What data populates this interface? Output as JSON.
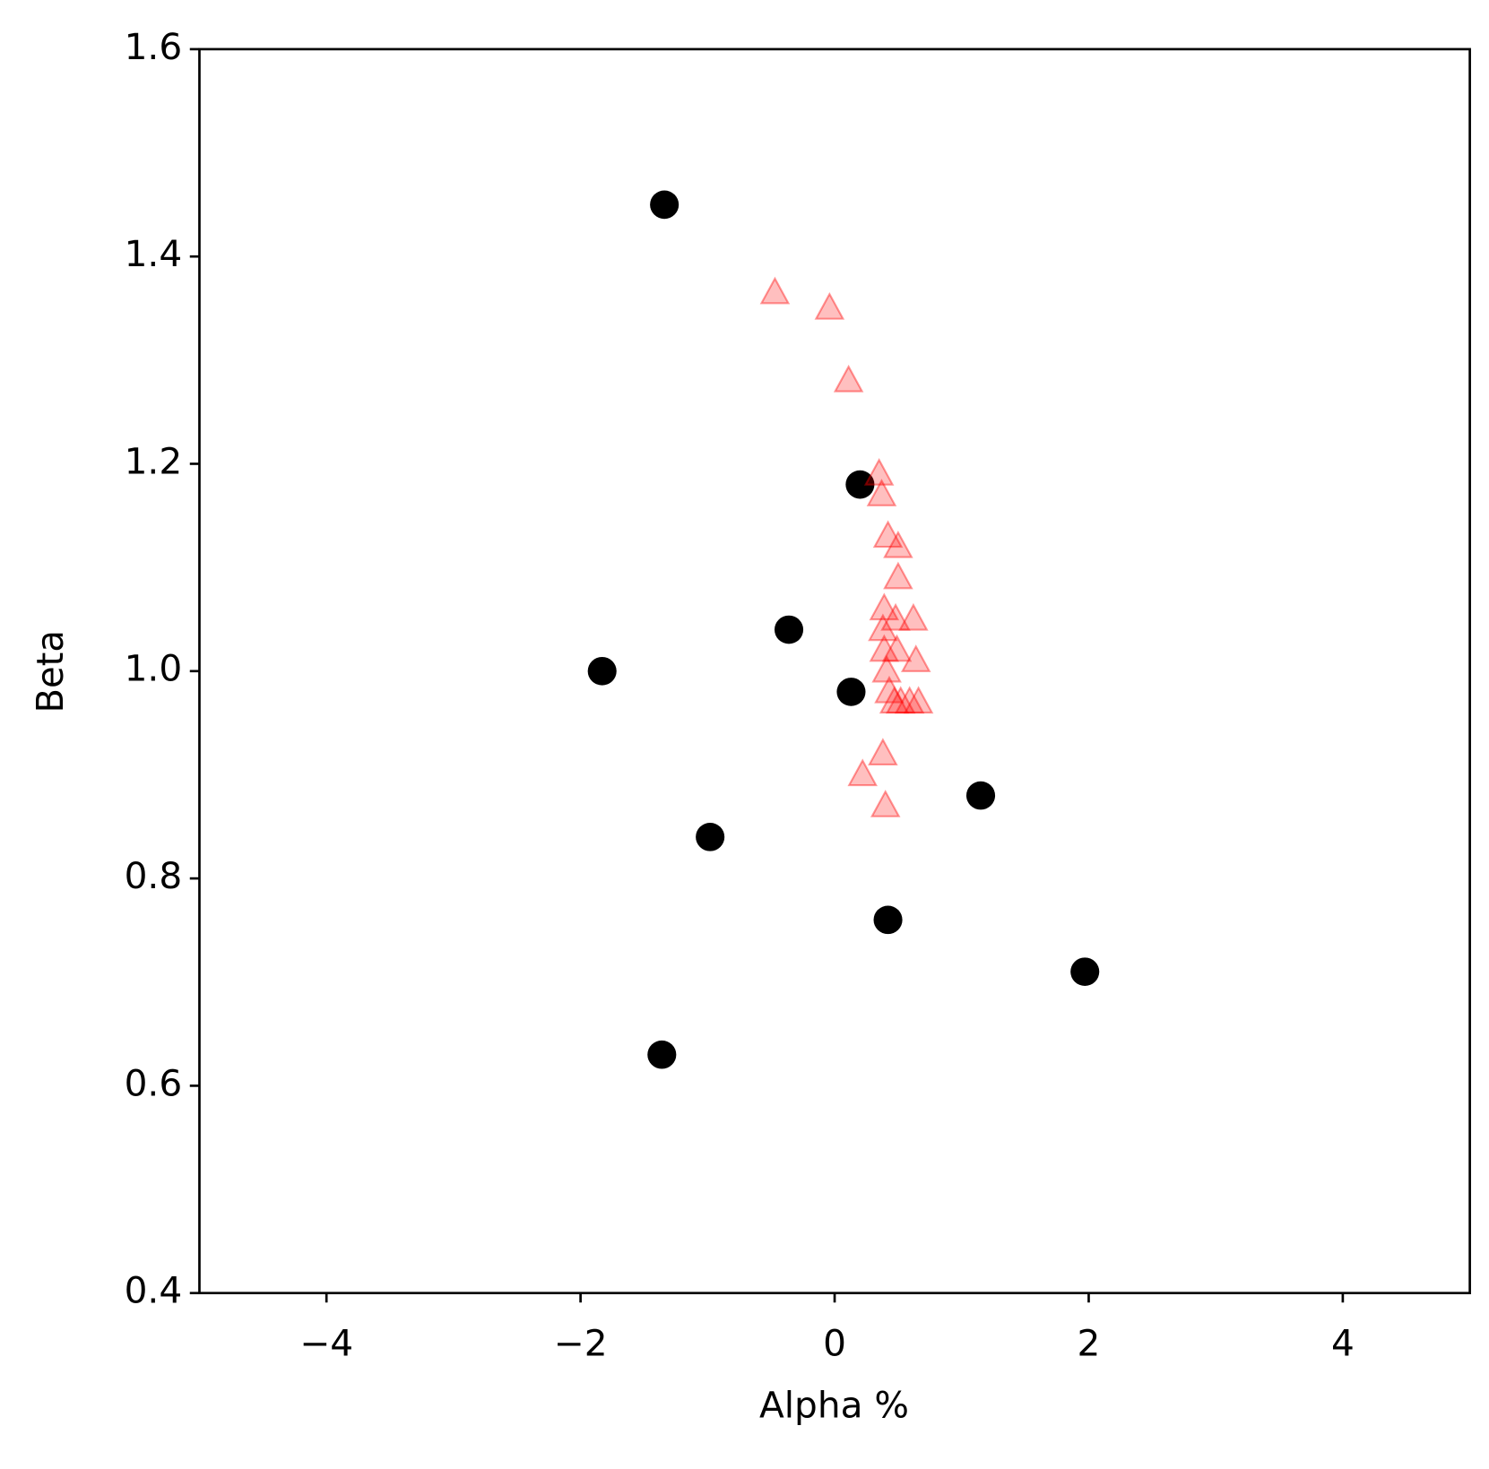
{
  "chart_data": {
    "type": "scatter",
    "xlabel": "Alpha %",
    "ylabel": "Beta",
    "xlim": [
      -5,
      5
    ],
    "ylim": [
      0.4,
      1.6
    ],
    "xticks": [
      {
        "value": -4,
        "label": "−4"
      },
      {
        "value": -2,
        "label": "−2"
      },
      0,
      2,
      4
    ],
    "yticks": [
      0.4,
      0.6,
      0.8,
      {
        "value": 1,
        "label": "1.0"
      },
      1.2,
      1.4,
      1.6
    ],
    "series": [
      {
        "color": "#000000",
        "marker": "circle",
        "opacity": 1,
        "x": [
          -1.34,
          0.2,
          -0.36,
          -1.83,
          0.13,
          1.15,
          -0.98,
          0.42,
          1.97,
          -1.36
        ],
        "values": [
          1.45,
          1.18,
          1.04,
          1.0,
          0.98,
          0.88,
          0.84,
          0.76,
          0.71,
          0.63
        ]
      },
      {
        "color": "#ff0000",
        "marker": "triangle",
        "opacity": 0.25,
        "x": [
          -0.47,
          -0.04,
          0.11,
          0.35,
          0.37,
          0.42,
          0.5,
          0.5,
          0.39,
          0.48,
          0.62,
          0.38,
          0.39,
          0.49,
          0.64,
          0.41,
          0.43,
          0.52,
          0.47,
          0.59,
          0.66,
          0.38,
          0.22,
          0.4
        ],
        "values": [
          1.365,
          1.35,
          1.28,
          1.19,
          1.17,
          1.13,
          1.12,
          1.09,
          1.06,
          1.05,
          1.05,
          1.04,
          1.02,
          1.02,
          1.01,
          1.0,
          0.98,
          0.97,
          0.97,
          0.97,
          0.97,
          0.92,
          0.9,
          0.87
        ]
      }
    ]
  }
}
